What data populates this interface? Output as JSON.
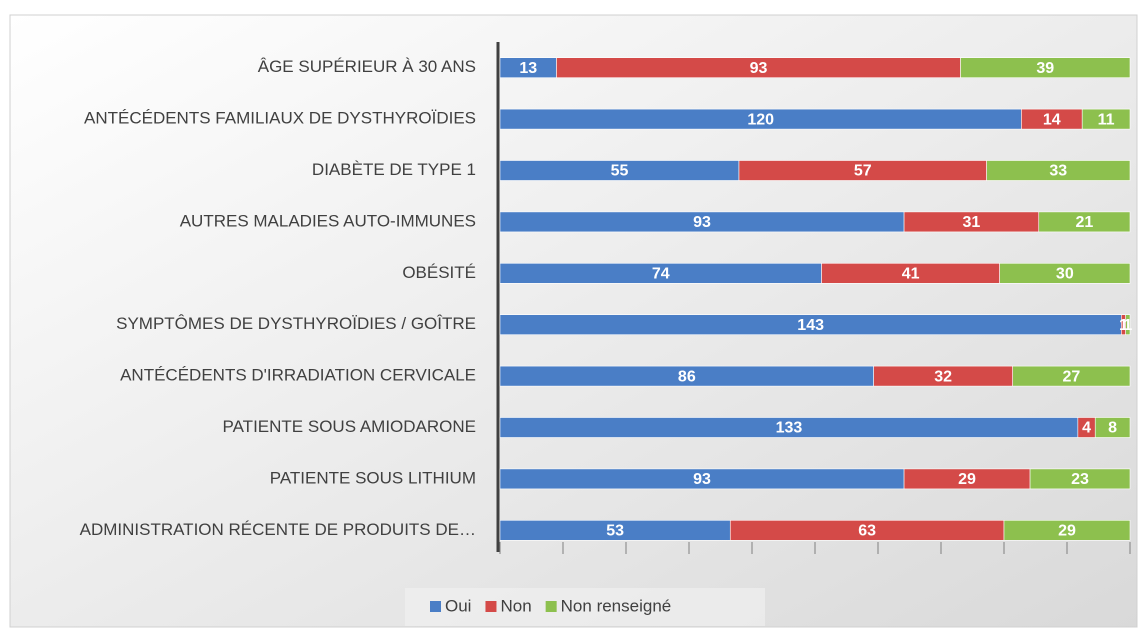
{
  "chart_data": {
    "type": "bar",
    "orientation": "horizontal",
    "stacked": true,
    "categories": [
      "ÂGE SUPÉRIEUR À 30 ANS",
      "ANTÉCÉDENTS FAMILIAUX DE DYSTHYROÏDIES",
      "DIABÈTE DE TYPE 1",
      "AUTRES MALADIES AUTO-IMMUNES",
      "OBÉSITÉ",
      "SYMPTÔMES DE DYSTHYROÏDIES / GOÎTRE",
      "ANTÉCÉDENTS D'IRRADIATION CERVICALE",
      "PATIENTE SOUS AMIODARONE",
      "PATIENTE SOUS LITHIUM",
      "ADMINISTRATION RÉCENTE DE PRODUITS DE…"
    ],
    "series": [
      {
        "name": "Oui",
        "color": "#4a7ec6",
        "values": [
          13,
          120,
          55,
          93,
          74,
          143,
          86,
          133,
          93,
          53
        ]
      },
      {
        "name": "Non",
        "color": "#d44a48",
        "values": [
          93,
          14,
          57,
          31,
          41,
          1,
          32,
          4,
          29,
          63
        ]
      },
      {
        "name": "Non renseigné",
        "color": "#8dc04e",
        "values": [
          39,
          11,
          33,
          21,
          30,
          1,
          27,
          8,
          23,
          29
        ]
      }
    ],
    "xlim": [
      0,
      145
    ],
    "xticks": [
      0,
      14.5,
      29,
      43.5,
      58,
      72.5,
      87,
      101.5,
      116,
      130.5,
      145
    ],
    "legend": "bottom"
  }
}
